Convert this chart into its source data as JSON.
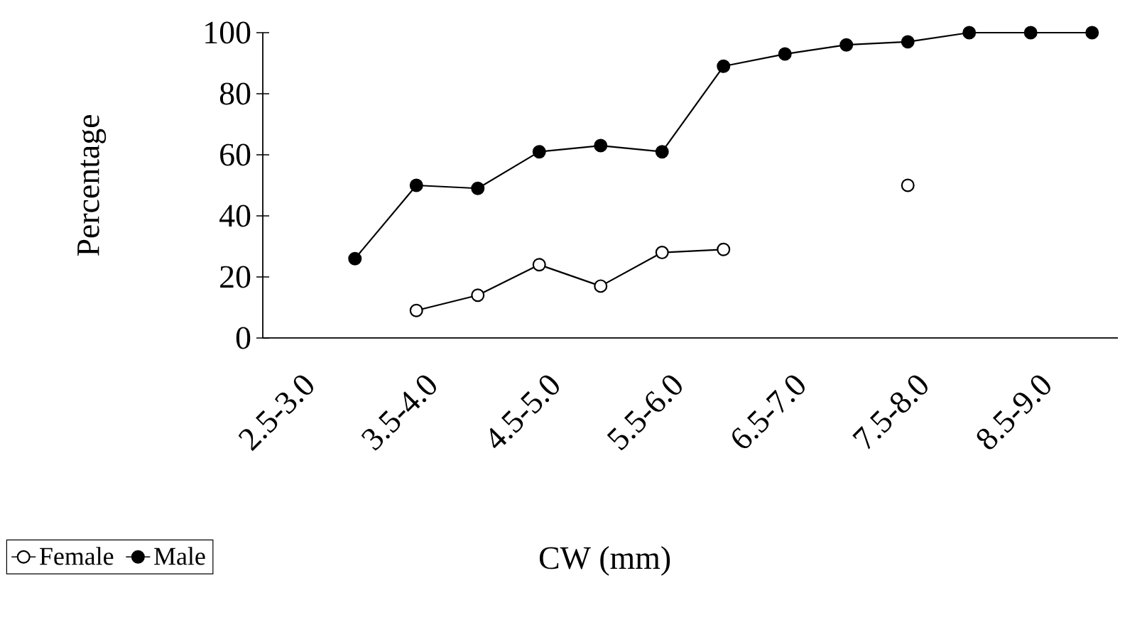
{
  "chart_data": {
    "type": "line",
    "xlabel": "CW (mm)",
    "ylabel": "Percentage",
    "categories": [
      "2.5-3.0",
      null,
      "3.5-4.0",
      null,
      "4.5-5.0",
      null,
      "5.5-6.0",
      null,
      "6.5-7.0",
      null,
      "7.5-8.0",
      null,
      "8.5-9.0",
      null
    ],
    "series": [
      {
        "name": "Female",
        "color": "#ffffff",
        "values": [
          null,
          null,
          9,
          14,
          24,
          17,
          28,
          29,
          null,
          null,
          50,
          null,
          null,
          null
        ]
      },
      {
        "name": "Male",
        "color": "#000000",
        "values": [
          null,
          26,
          50,
          49,
          61,
          63,
          61,
          89,
          93,
          96,
          97,
          100,
          100,
          100
        ]
      }
    ],
    "ylim": [
      0,
      100
    ],
    "yticks": [
      0,
      20,
      40,
      60,
      80,
      100
    ],
    "marker": "circle",
    "line_style": "solid",
    "legend": "bottom left",
    "grid": false
  }
}
